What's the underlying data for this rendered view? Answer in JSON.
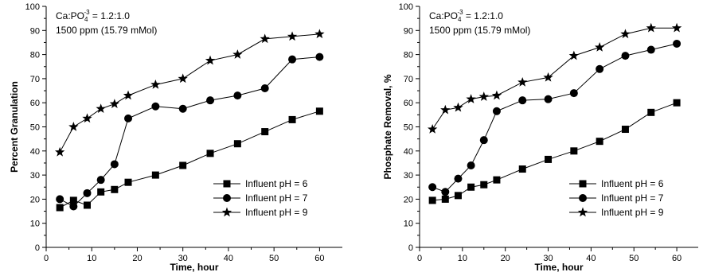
{
  "chart_data": [
    {
      "type": "line",
      "title": "",
      "xlabel": "Time, hour",
      "ylabel": "Percent Granulation",
      "xlim": [
        0,
        65
      ],
      "ylim": [
        0,
        100
      ],
      "xticks": [
        0,
        10,
        20,
        30,
        40,
        50,
        60
      ],
      "yticks": [
        0,
        10,
        20,
        30,
        40,
        50,
        60,
        70,
        80,
        90,
        100
      ],
      "annotation": {
        "ratio_prefix": "Ca:PO",
        "ratio_sub": "4",
        "ratio_sup": "-3",
        "ratio_suffix": " = 1.2:1.0",
        "concentration": "1500 ppm (15.79 mMol)"
      },
      "legend_position": "bottom-right",
      "grid": false,
      "series": [
        {
          "name": "Influent pH = 6",
          "marker": "square",
          "x": [
            3,
            6,
            9,
            12,
            15,
            18,
            24,
            30,
            36,
            42,
            48,
            54,
            60
          ],
          "y": [
            16.5,
            19.5,
            17.5,
            23,
            24,
            27,
            30,
            34,
            39,
            43,
            48,
            53,
            56.5
          ]
        },
        {
          "name": "Influent pH = 7",
          "marker": "circle",
          "x": [
            3,
            6,
            9,
            12,
            15,
            18,
            24,
            30,
            36,
            42,
            48,
            54,
            60
          ],
          "y": [
            20,
            17,
            22.5,
            28,
            34.5,
            53.5,
            58.5,
            57.5,
            61,
            63,
            66,
            78,
            79
          ]
        },
        {
          "name": "Influent pH = 9",
          "marker": "star",
          "x": [
            3,
            6,
            9,
            12,
            15,
            18,
            24,
            30,
            36,
            42,
            48,
            54,
            60
          ],
          "y": [
            39.5,
            50,
            53.5,
            57.5,
            59.5,
            63,
            67.5,
            70,
            77.5,
            80,
            86.5,
            87.5,
            88.5
          ]
        }
      ]
    },
    {
      "type": "line",
      "title": "",
      "xlabel": "Time, hour",
      "ylabel": "Phosphate Removal, %",
      "xlim": [
        0,
        65
      ],
      "ylim": [
        0,
        100
      ],
      "xticks": [
        0,
        10,
        20,
        30,
        40,
        50,
        60
      ],
      "yticks": [
        0,
        10,
        20,
        30,
        40,
        50,
        60,
        70,
        80,
        90,
        100
      ],
      "annotation": {
        "ratio_prefix": "Ca:PO",
        "ratio_sub": "4",
        "ratio_sup": "-3",
        "ratio_suffix": " = 1.2:1.0",
        "concentration": "1500 ppm (15.79 mMol)"
      },
      "legend_position": "bottom-right",
      "grid": false,
      "series": [
        {
          "name": "Influent pH = 6",
          "marker": "square",
          "x": [
            3,
            6,
            9,
            12,
            15,
            18,
            24,
            30,
            36,
            42,
            48,
            54,
            60
          ],
          "y": [
            19.5,
            20,
            21.5,
            25,
            26,
            28,
            32.5,
            36.5,
            40,
            44,
            49,
            56,
            60
          ]
        },
        {
          "name": "Influent pH = 7",
          "marker": "circle",
          "x": [
            3,
            6,
            9,
            12,
            15,
            18,
            24,
            30,
            36,
            42,
            48,
            54,
            60
          ],
          "y": [
            25,
            23,
            28.5,
            34,
            44.5,
            56.5,
            61,
            61.5,
            64,
            74,
            79.5,
            82,
            84.5
          ]
        },
        {
          "name": "Influent pH = 9",
          "marker": "star",
          "x": [
            3,
            6,
            9,
            12,
            15,
            18,
            24,
            30,
            36,
            42,
            48,
            54,
            60
          ],
          "y": [
            49,
            57,
            58,
            61.5,
            62.5,
            63,
            68.5,
            70.5,
            79.5,
            83,
            88.5,
            91,
            91
          ]
        }
      ]
    }
  ]
}
